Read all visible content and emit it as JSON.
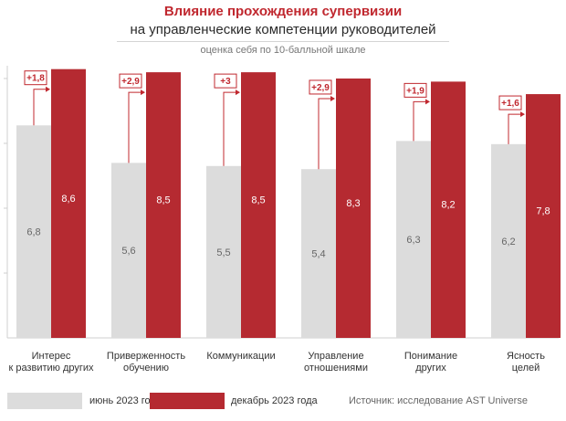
{
  "title_line1": "Влияние прохождения супервизии",
  "title_line2": "на управленческие компетенции руководителей",
  "subtitle": "оценка себя по 10-балльной шкале",
  "source": "Источник: исследование AST Universe",
  "colors": {
    "june": "#dcdcdc",
    "december": "#b52a31",
    "accent": "#c0282f"
  },
  "chart_data": {
    "type": "bar",
    "categories": [
      [
        "Интерес",
        "к развитию других"
      ],
      [
        "Приверженность",
        "обучению"
      ],
      [
        "Коммуникации"
      ],
      [
        "Управление",
        "отношениями"
      ],
      [
        "Понимание",
        "других"
      ],
      [
        "Ясность",
        "целей"
      ]
    ],
    "series": [
      {
        "name": "июнь 2023 года",
        "values": [
          6.8,
          5.6,
          5.5,
          5.4,
          6.3,
          6.2
        ],
        "labels": [
          "6,8",
          "5,6",
          "5,5",
          "5,4",
          "6,3",
          "6,2"
        ]
      },
      {
        "name": "декабрь 2023 года",
        "values": [
          8.6,
          8.5,
          8.5,
          8.3,
          8.2,
          7.8
        ],
        "labels": [
          "8,6",
          "8,5",
          "8,5",
          "8,3",
          "8,2",
          "7,8"
        ]
      }
    ],
    "deltas": [
      "+1,8",
      "+2,9",
      "+3",
      "+2,9",
      "+1,9",
      "+1,6"
    ],
    "ylim": [
      0,
      9
    ],
    "legend_position": "bottom"
  }
}
